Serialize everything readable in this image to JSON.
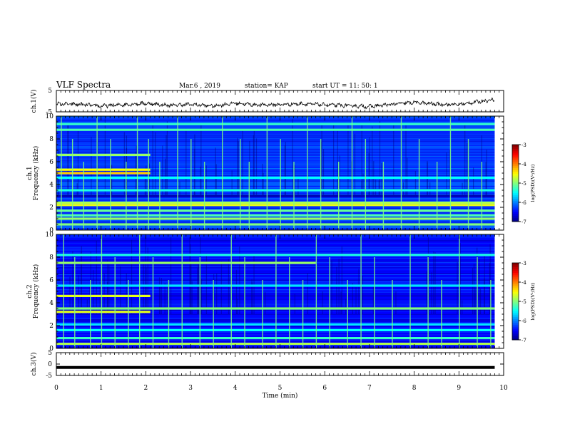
{
  "header": {
    "title": "VLF Spectra",
    "date": "Mar.6 , 2019",
    "station": "station= KAP",
    "start": "start UT = 11: 50: 1"
  },
  "chart_data": [
    {
      "type": "line",
      "panel": "top-waveform",
      "ylabel": "ch.1(V)",
      "ylim": [
        -5,
        5
      ],
      "yticks": [
        5,
        -5
      ],
      "xlim": [
        0,
        10
      ],
      "summary": "noisy waveform near -1.3 V at start, dipping to about -2.5 V around 7 min, rising to about 0.7 V near 9.8 min",
      "trend": {
        "x": [
          0,
          0.5,
          1,
          1.5,
          2,
          2.5,
          3,
          3.5,
          4,
          4.5,
          5,
          5.5,
          6,
          6.5,
          7,
          7.5,
          8,
          8.5,
          9,
          9.5,
          9.8
        ],
        "y": [
          -1.3,
          -1.5,
          -2.3,
          -1.6,
          -1.0,
          -2.0,
          -1.5,
          -2.3,
          -0.9,
          -1.8,
          -1.6,
          -1.2,
          -1.7,
          -2.1,
          -2.5,
          -1.5,
          -0.6,
          -1.4,
          -1.6,
          0.0,
          0.7
        ]
      }
    },
    {
      "type": "heatmap",
      "panel": "ch1-spectrogram",
      "channel_label": "ch.1",
      "ylabel": "Frequency (kHz)",
      "ylim": [
        0,
        10
      ],
      "yticks": [
        0,
        2,
        4,
        6,
        8,
        10
      ],
      "xlim": [
        0,
        10
      ],
      "data_end_min": 9.8,
      "colorbar": {
        "label": "log(PSD)(V²/Hz)",
        "range": [
          -7,
          -3
        ],
        "ticks": [
          -3,
          -4,
          -5,
          -6,
          -7
        ]
      },
      "base_level": -6.3,
      "bands": [
        {
          "f_khz": 0.5,
          "level": -5.0,
          "end_min": 9.8
        },
        {
          "f_khz": 1.0,
          "level": -4.9,
          "end_min": 9.8
        },
        {
          "f_khz": 1.3,
          "level": -5.2,
          "end_min": 9.8
        },
        {
          "f_khz": 1.7,
          "level": -5.1,
          "end_min": 9.8
        },
        {
          "f_khz": 2.2,
          "level": -4.6,
          "end_min": 9.8
        },
        {
          "f_khz": 2.4,
          "level": -4.8,
          "end_min": 9.8
        },
        {
          "f_khz": 3.0,
          "level": -6.8,
          "end_min": 9.8
        },
        {
          "f_khz": 3.5,
          "level": -5.4,
          "end_min": 9.8
        },
        {
          "f_khz": 4.6,
          "level": -5.5,
          "end_min": 9.8
        },
        {
          "f_khz": 5.0,
          "level": -4.3,
          "end_min": 2.1
        },
        {
          "f_khz": 5.3,
          "level": -4.5,
          "end_min": 2.1
        },
        {
          "f_khz": 6.6,
          "level": -4.9,
          "end_min": 2.1
        },
        {
          "f_khz": 8.8,
          "level": -5.2,
          "end_min": 9.8
        },
        {
          "f_khz": 9.3,
          "level": -5.3,
          "end_min": 9.8
        }
      ],
      "impulse_times_min": [
        0.1,
        0.35,
        0.6,
        0.9,
        1.2,
        1.55,
        1.8,
        2.05,
        2.3,
        2.7,
        3.0,
        3.3,
        3.7,
        4.1,
        4.3,
        4.7,
        5.0,
        5.3,
        5.6,
        5.9,
        6.3,
        6.6,
        6.9,
        7.3,
        7.7,
        8.1,
        8.5,
        8.8,
        9.2,
        9.5
      ]
    },
    {
      "type": "heatmap",
      "panel": "ch2-spectrogram",
      "channel_label": "ch.2",
      "ylabel": "Frequency (kHz)",
      "ylim": [
        0,
        10
      ],
      "yticks": [
        0,
        2,
        4,
        6,
        8,
        10
      ],
      "xlim": [
        0,
        10
      ],
      "data_end_min": 9.8,
      "colorbar": {
        "label": "log(PSD)(V²/Hz)",
        "range": [
          -7,
          -3
        ],
        "ticks": [
          -3,
          -4,
          -5,
          -6,
          -7
        ]
      },
      "base_level": -6.5,
      "bands": [
        {
          "f_khz": 0.4,
          "level": -4.8,
          "end_min": 9.8
        },
        {
          "f_khz": 0.9,
          "level": -5.3,
          "end_min": 9.8
        },
        {
          "f_khz": 1.6,
          "level": -5.5,
          "end_min": 9.8
        },
        {
          "f_khz": 2.1,
          "level": -5.6,
          "end_min": 9.8
        },
        {
          "f_khz": 3.2,
          "level": -4.6,
          "end_min": 2.1
        },
        {
          "f_khz": 3.5,
          "level": -5.0,
          "end_min": 9.8
        },
        {
          "f_khz": 4.6,
          "level": -4.6,
          "end_min": 2.1
        },
        {
          "f_khz": 5.5,
          "level": -5.6,
          "end_min": 9.8
        },
        {
          "f_khz": 7.5,
          "level": -4.9,
          "end_min": 5.8
        },
        {
          "f_khz": 8.2,
          "level": -5.4,
          "end_min": 9.8
        }
      ],
      "impulse_times_min": [
        0.15,
        0.4,
        0.75,
        1.0,
        1.3,
        1.6,
        1.85,
        2.15,
        2.5,
        2.8,
        3.2,
        3.5,
        3.9,
        4.2,
        4.6,
        4.9,
        5.2,
        5.5,
        5.8,
        6.1,
        6.5,
        6.8,
        7.1,
        7.5,
        7.9,
        8.3,
        8.6,
        9.0,
        9.4,
        9.7
      ]
    },
    {
      "type": "line",
      "panel": "bottom-waveform",
      "ylabel": "ch.3(V)",
      "ylim": [
        -5,
        5
      ],
      "yticks": [
        5,
        0,
        -5
      ],
      "xlim": [
        0,
        10
      ],
      "xlabel": "Time (min)",
      "xticks": [
        0,
        1,
        2,
        3,
        4,
        5,
        6,
        7,
        8,
        9,
        10
      ],
      "summary": "flat thick line at about -1.5 V from 0 to 9.8 min",
      "trend": {
        "x": [
          0,
          9.8
        ],
        "y": [
          -1.5,
          -1.5
        ]
      }
    }
  ]
}
